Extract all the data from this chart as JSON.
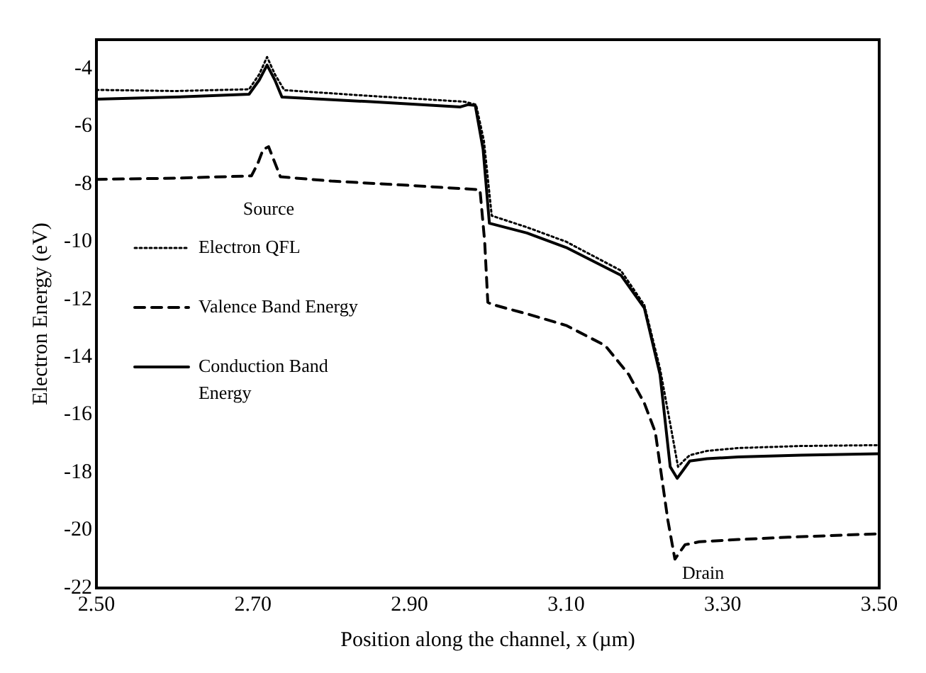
{
  "chart_data": {
    "type": "line",
    "xlabel": "Position along the channel, x (µm)",
    "ylabel": "Electron Energy (eV)",
    "xlim": [
      2.5,
      3.5
    ],
    "xticks": [
      {
        "value": 2.5,
        "label": "2.50"
      },
      {
        "value": 2.7,
        "label": "2.70"
      },
      {
        "value": 2.9,
        "label": "2.90"
      },
      {
        "value": 3.1,
        "label": "3.10"
      },
      {
        "value": 3.3,
        "label": "3.30"
      },
      {
        "value": 3.5,
        "label": "3.50"
      }
    ],
    "ylim": [
      -22,
      -3
    ],
    "yticks": [
      -4,
      -6,
      -8,
      -10,
      -12,
      -14,
      -16,
      -18,
      -20,
      -22
    ],
    "grid": false,
    "legend": "left",
    "marker": "none",
    "series": [
      {
        "name": "Electron QFL",
        "color": "#000000",
        "line_style": "dotted",
        "x": [
          2.5,
          2.6,
          2.695,
          2.708,
          2.718,
          2.728,
          2.74,
          2.85,
          2.97,
          2.985,
          2.995,
          3.005,
          3.05,
          3.1,
          3.17,
          3.2,
          3.22,
          3.235,
          3.243,
          3.25,
          3.258,
          3.28,
          3.32,
          3.4,
          3.5
        ],
        "values": [
          -4.74,
          -4.78,
          -4.72,
          -4.2,
          -3.6,
          -4.2,
          -4.75,
          -4.95,
          -5.15,
          -5.25,
          -6.5,
          -9.1,
          -9.5,
          -10.0,
          -11.0,
          -12.2,
          -14.4,
          -16.6,
          -17.8,
          -17.6,
          -17.4,
          -17.25,
          -17.15,
          -17.08,
          -17.05
        ]
      },
      {
        "name": "Valence Band Energy",
        "color": "#000000",
        "line_style": "dashed",
        "x": [
          2.5,
          2.6,
          2.698,
          2.706,
          2.713,
          2.72,
          2.727,
          2.735,
          2.8,
          2.9,
          2.99,
          2.996,
          3.0,
          3.005,
          3.05,
          3.1,
          3.15,
          3.18,
          3.2,
          3.214,
          3.23,
          3.239,
          3.252,
          3.27,
          3.32,
          3.384,
          3.5
        ],
        "values": [
          -7.84,
          -7.8,
          -7.72,
          -7.3,
          -6.8,
          -6.71,
          -7.2,
          -7.75,
          -7.9,
          -8.05,
          -8.2,
          -10.0,
          -12.1,
          -12.17,
          -12.5,
          -12.9,
          -13.6,
          -14.6,
          -15.6,
          -16.6,
          -19.65,
          -21.0,
          -20.5,
          -20.4,
          -20.32,
          -20.24,
          -20.12
        ]
      },
      {
        "name": "Conduction Band Energy",
        "color": "#000000",
        "line_style": "solid",
        "x": [
          2.5,
          2.6,
          2.695,
          2.708,
          2.718,
          2.728,
          2.737,
          2.85,
          2.965,
          2.975,
          2.984,
          2.994,
          3.002,
          3.05,
          3.1,
          3.17,
          3.2,
          3.22,
          3.233,
          3.242,
          3.25,
          3.258,
          3.28,
          3.32,
          3.4,
          3.5
        ],
        "values": [
          -5.06,
          -4.99,
          -4.89,
          -4.4,
          -3.88,
          -4.4,
          -4.99,
          -5.15,
          -5.33,
          -5.25,
          -5.28,
          -6.8,
          -9.36,
          -9.7,
          -10.2,
          -11.16,
          -12.3,
          -14.6,
          -17.8,
          -18.2,
          -17.9,
          -17.6,
          -17.52,
          -17.46,
          -17.4,
          -17.35
        ]
      }
    ],
    "annotations": [
      "Source",
      "Drain"
    ]
  }
}
